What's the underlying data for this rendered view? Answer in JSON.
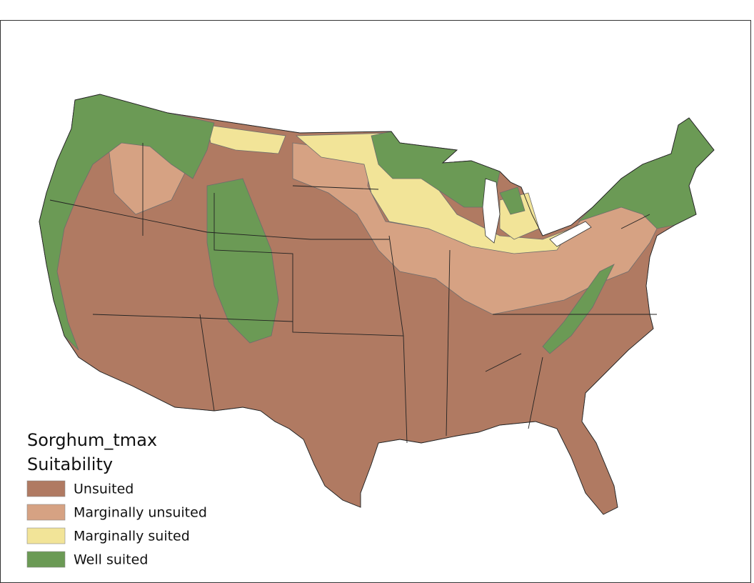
{
  "legend": {
    "title": "Sorghum_tmax",
    "subtitle": "Suitability",
    "items": [
      {
        "label": "Unsuited",
        "color": "#b07a62"
      },
      {
        "label": "Marginally unsuited",
        "color": "#d6a283"
      },
      {
        "label": "Marginally suited",
        "color": "#f2e498"
      },
      {
        "label": "Well suited",
        "color": "#6b9a55"
      }
    ]
  }
}
